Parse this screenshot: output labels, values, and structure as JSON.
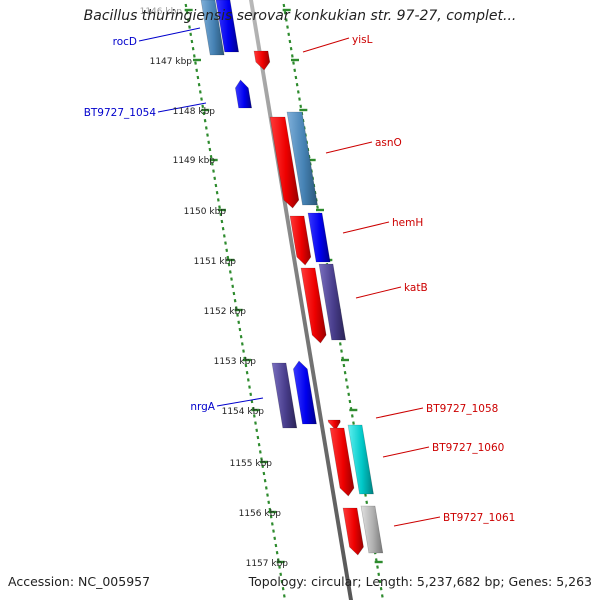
{
  "header": {
    "title": "Bacillus thuringiensis serovar konkukian str. 97-27, complet..."
  },
  "footer": {
    "accession": "Accession: NC_005957",
    "topology": "Topology: circular; Length: 5,237,682 bp; Genes: 5,263"
  },
  "scale": {
    "labels": [
      "1146 kbp",
      "1147 kbp",
      "1148 kbp",
      "1149 kbp",
      "1150 kbp",
      "1151 kbp",
      "1152 kbp",
      "1153 kbp",
      "1154 kbp",
      "1155 kbp",
      "1156 kbp",
      "1157 kbp"
    ]
  },
  "genes": {
    "labels": [
      {
        "name": "rocD",
        "color": "#0000cc"
      },
      {
        "name": "BT9727_1054",
        "color": "#0000cc"
      },
      {
        "name": "nrgA",
        "color": "#0000cc"
      },
      {
        "name": "yisL",
        "color": "#cc0000"
      },
      {
        "name": "asnO",
        "color": "#cc0000"
      },
      {
        "name": "hemH",
        "color": "#cc0000"
      },
      {
        "name": "katB",
        "color": "#cc0000"
      },
      {
        "name": "BT9727_1058",
        "color": "#cc0000"
      },
      {
        "name": "BT9727_1060",
        "color": "#cc0000"
      },
      {
        "name": "BT9727_1061",
        "color": "#cc0000"
      }
    ]
  },
  "colors": {
    "backbone": "#888888",
    "tick": "#2e8b2e",
    "forward_cds": "#ee0000",
    "reverse_blue": "#0000ee",
    "reverse_steel": "#4682b4",
    "reverse_purple": "#483d8b",
    "cyan": "#00c8c8",
    "grey": "#b0b0b0"
  }
}
